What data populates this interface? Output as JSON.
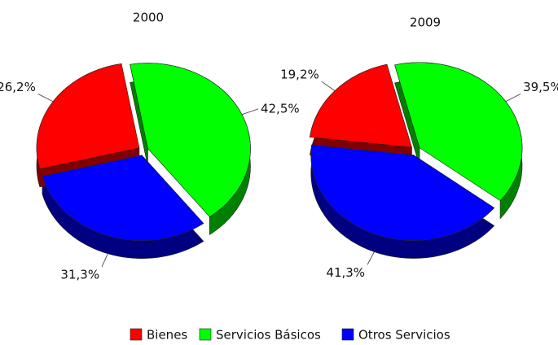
{
  "chart_data": [
    {
      "type": "pie",
      "title": "2000",
      "categories": [
        "Bienes",
        "Servicios Básicos",
        "Otros Servicios"
      ],
      "values": [
        26.2,
        42.5,
        31.3
      ],
      "value_labels": [
        "26,2%",
        "42,5%",
        "31,3%"
      ],
      "colors": [
        "#ff0000",
        "#00ff00",
        "#0000ff"
      ]
    },
    {
      "type": "pie",
      "title": "2009",
      "categories": [
        "Bienes",
        "Servicios Básicos",
        "Otros Servicios"
      ],
      "values": [
        19.2,
        39.5,
        41.3
      ],
      "value_labels": [
        "19,2%",
        "39,5%",
        "41,3%"
      ],
      "colors": [
        "#ff0000",
        "#00ff00",
        "#0000ff"
      ]
    }
  ]
}
